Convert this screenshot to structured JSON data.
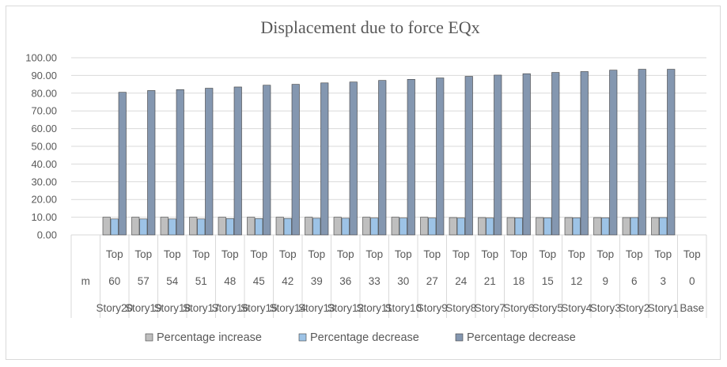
{
  "chart_data": {
    "type": "bar",
    "title": "Displacement due to force EQx",
    "ylim": [
      0,
      100
    ],
    "yticks": [
      "0.00",
      "10.00",
      "20.00",
      "30.00",
      "40.00",
      "50.00",
      "60.00",
      "70.00",
      "80.00",
      "90.00",
      "100.00"
    ],
    "category_levels": {
      "top": [
        "",
        "Top",
        "Top",
        "Top",
        "Top",
        "Top",
        "Top",
        "Top",
        "Top",
        "Top",
        "Top",
        "Top",
        "Top",
        "Top",
        "Top",
        "Top",
        "Top",
        "Top",
        "Top",
        "Top",
        "Top",
        "Top"
      ],
      "height": [
        "m",
        "60",
        "57",
        "54",
        "51",
        "48",
        "45",
        "42",
        "39",
        "36",
        "33",
        "30",
        "27",
        "24",
        "21",
        "18",
        "15",
        "12",
        "9",
        "6",
        "3",
        "0"
      ],
      "story": [
        "",
        "Story20",
        "Story19",
        "Story18",
        "Story17",
        "Story16",
        "Story15",
        "Story14",
        "Story13",
        "Story12",
        "Story11",
        "Story10",
        "Story9",
        "Story8",
        "Story7",
        "Story6",
        "Story5",
        "Story4",
        "Story3",
        "Story2",
        "Story1",
        "Base"
      ]
    },
    "series": [
      {
        "name": "Percentage increase",
        "color": "#bfbfbf",
        "values": [
          null,
          10,
          10,
          10,
          10,
          10,
          10,
          10,
          10,
          10,
          10,
          10,
          10,
          9.8,
          9.8,
          9.8,
          9.8,
          9.8,
          9.8,
          9.8,
          9.8,
          null
        ]
      },
      {
        "name": "Percentage decrease",
        "color": "#9dc3e6",
        "values": [
          null,
          9.0,
          9.0,
          9.0,
          9.0,
          9.2,
          9.2,
          9.3,
          9.4,
          9.4,
          9.5,
          9.5,
          9.5,
          9.5,
          9.5,
          9.6,
          9.6,
          9.6,
          9.6,
          9.8,
          9.8,
          null
        ]
      },
      {
        "name": "Percentage decrease",
        "color": "#8497b0",
        "values": [
          null,
          80.5,
          81.5,
          82.0,
          82.8,
          83.5,
          84.5,
          85.0,
          85.8,
          86.3,
          87.2,
          87.8,
          88.6,
          89.5,
          90.2,
          91.0,
          91.7,
          92.2,
          93.0,
          93.5,
          93.5,
          null
        ]
      }
    ]
  }
}
